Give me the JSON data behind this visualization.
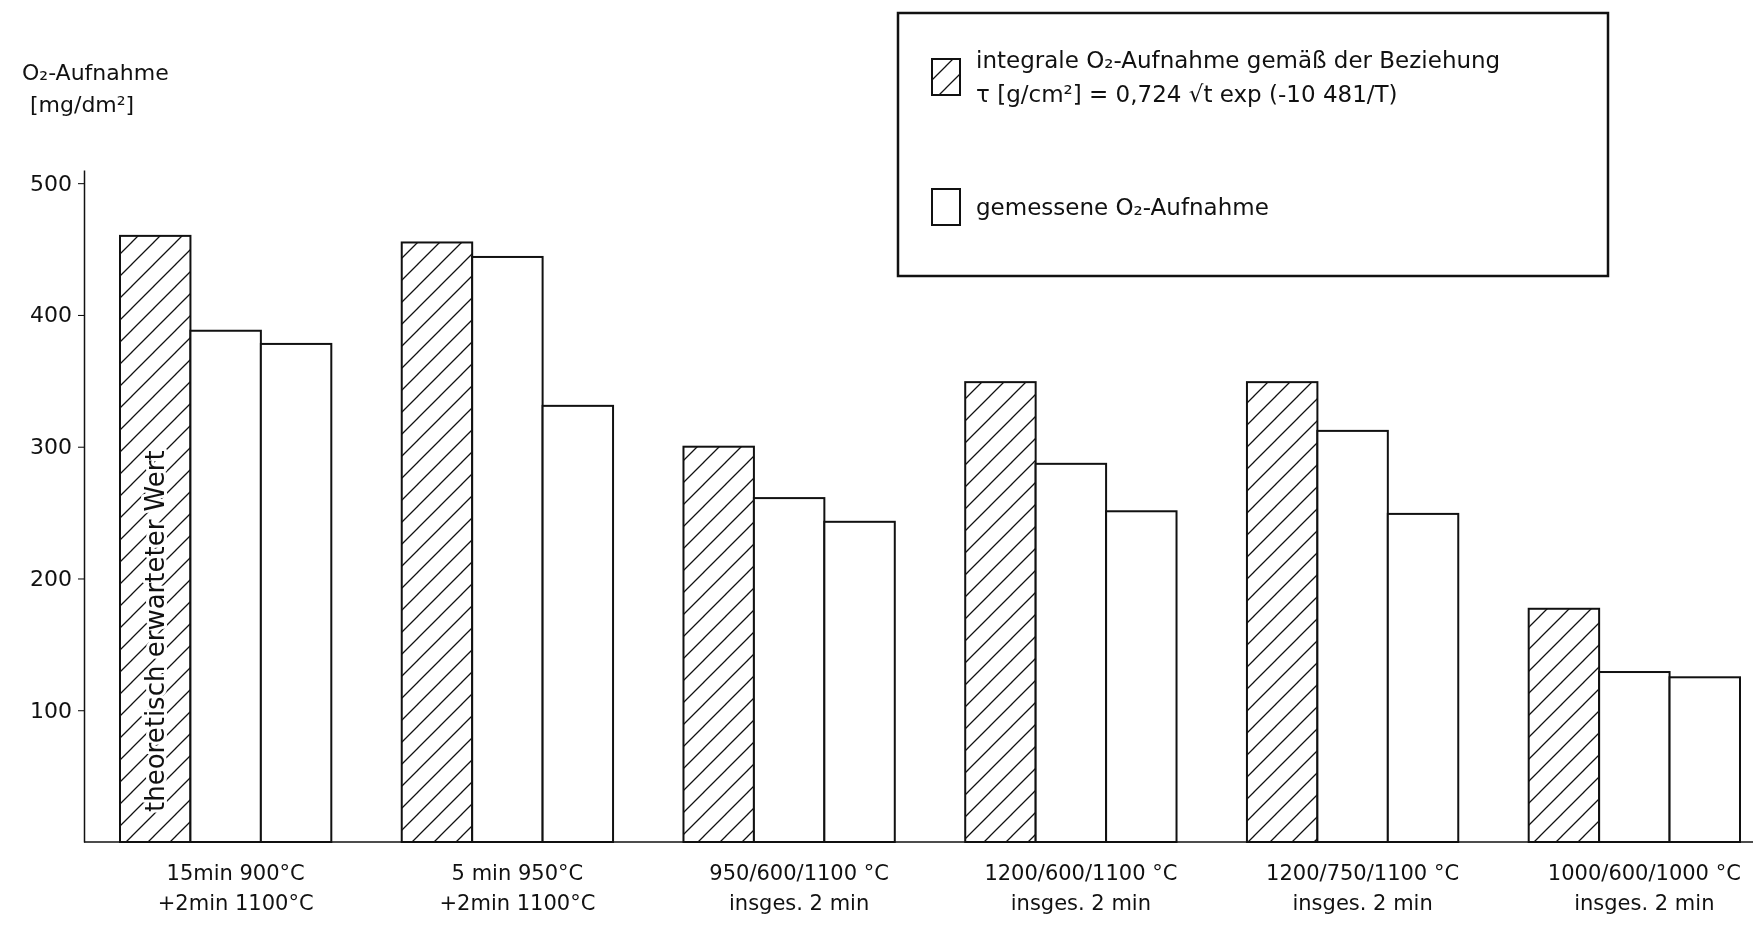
{
  "chart_data": {
    "type": "bar",
    "ylabel": "O₂-Aufnahme\n[mg/dm²]",
    "categories": [
      "15min 900°C\n+2min 1100°C",
      "5 min 950°C\n+2min 1100°C",
      "950/600/1100 °C\ninsges. 2 min",
      "1200/600/1100 °C\ninsges. 2 min",
      "1200/750/1100 °C\ninsges. 2 min",
      "1000/600/1000 °C\ninsges. 2 min"
    ],
    "series": [
      {
        "name": "integrale O₂-Aufnahme gemäß der Beziehung\nτ [g/cm²] = 0,724 √t  exp (-10 481/T)",
        "color": "#111111",
        "values": [
          460,
          455,
          300,
          349,
          349,
          177
        ]
      },
      {
        "name": "gemessene O₂-Aufnahme",
        "color": "#ffffff",
        "values": [
          388,
          444,
          261,
          287,
          312,
          129
        ]
      },
      {
        "color": "#ffffff",
        "values": [
          378,
          331,
          243,
          251,
          249,
          125
        ]
      }
    ],
    "ylim": [
      0,
      510
    ],
    "yticks": [
      100,
      200,
      300,
      400,
      500
    ],
    "legend": "top right",
    "annotations": [
      "theoretisch erwarteter Wert"
    ]
  }
}
